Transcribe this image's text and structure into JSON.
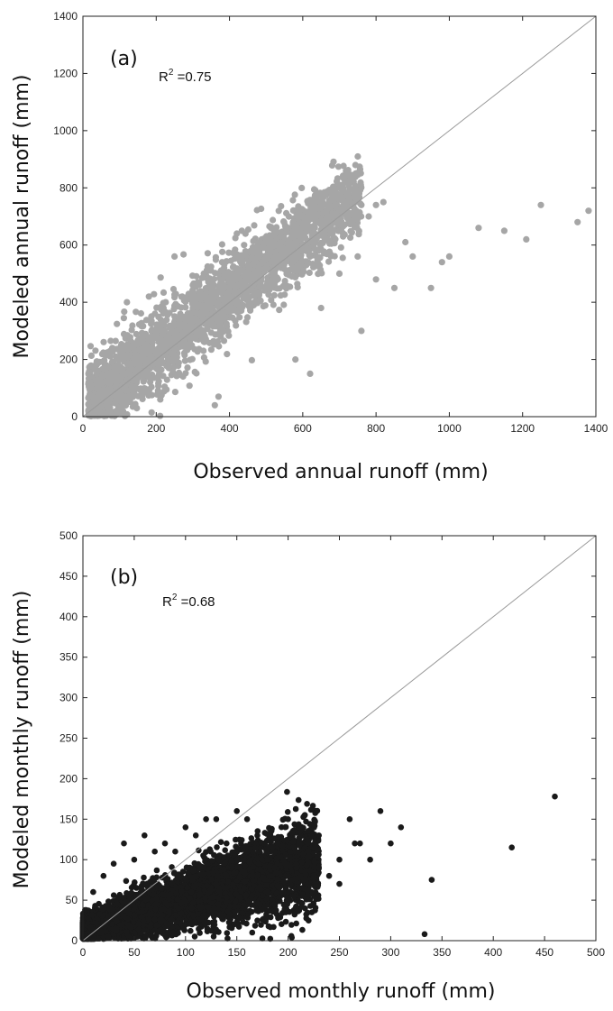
{
  "chart_data": [
    {
      "type": "scatter",
      "panel_label": "(a)",
      "annotation": {
        "prefix": "R",
        "superscript": "2",
        "suffix": " =0.75"
      },
      "xlabel": "Observed annual runoff (mm)",
      "ylabel": "Modeled annual runoff (mm)",
      "xlim": [
        0,
        1400
      ],
      "ylim": [
        0,
        1400
      ],
      "xticks": [
        0,
        200,
        400,
        600,
        800,
        1000,
        1200,
        1400
      ],
      "yticks": [
        0,
        200,
        400,
        600,
        800,
        1000,
        1200,
        1400
      ],
      "grid": false,
      "reference_line": "1:1",
      "marker_color": "#a6a6a6",
      "reference_line_color": "#9a9a9a",
      "points": [
        [
          30,
          50
        ],
        [
          40,
          130
        ],
        [
          60,
          180
        ],
        [
          80,
          240
        ],
        [
          90,
          60
        ],
        [
          120,
          400
        ],
        [
          100,
          130
        ],
        [
          150,
          260
        ],
        [
          180,
          220
        ],
        [
          200,
          300
        ],
        [
          220,
          250
        ],
        [
          250,
          320
        ],
        [
          280,
          300
        ],
        [
          300,
          380
        ],
        [
          330,
          340
        ],
        [
          350,
          420
        ],
        [
          380,
          360
        ],
        [
          400,
          440
        ],
        [
          420,
          400
        ],
        [
          450,
          480
        ],
        [
          480,
          430
        ],
        [
          500,
          520
        ],
        [
          520,
          480
        ],
        [
          550,
          560
        ],
        [
          580,
          520
        ],
        [
          600,
          600
        ],
        [
          620,
          560
        ],
        [
          640,
          680
        ],
        [
          660,
          640
        ],
        [
          680,
          700
        ],
        [
          700,
          650
        ],
        [
          720,
          720
        ],
        [
          740,
          690
        ],
        [
          760,
          740
        ],
        [
          780,
          700
        ],
        [
          800,
          740
        ],
        [
          820,
          750
        ],
        [
          760,
          300
        ],
        [
          650,
          380
        ],
        [
          580,
          200
        ],
        [
          620,
          150
        ],
        [
          700,
          500
        ],
        [
          750,
          560
        ],
        [
          800,
          480
        ],
        [
          850,
          450
        ],
        [
          880,
          610
        ],
        [
          900,
          560
        ],
        [
          950,
          450
        ],
        [
          980,
          540
        ],
        [
          1000,
          560
        ],
        [
          1080,
          660
        ],
        [
          1150,
          650
        ],
        [
          1210,
          620
        ],
        [
          1250,
          740
        ],
        [
          1350,
          680
        ],
        [
          1380,
          720
        ],
        [
          360,
          40
        ],
        [
          370,
          70
        ],
        [
          250,
          560
        ],
        [
          300,
          460
        ],
        [
          180,
          420
        ],
        [
          420,
          640
        ],
        [
          480,
          560
        ],
        [
          560,
          660
        ],
        [
          600,
          700
        ],
        [
          540,
          640
        ],
        [
          380,
          540
        ],
        [
          440,
          600
        ],
        [
          330,
          500
        ],
        [
          220,
          380
        ]
      ],
      "point_cloud": {
        "x_range": [
          15,
          760
        ],
        "spread": 70,
        "slope": 1.0,
        "intercept": 30,
        "count": 2600
      }
    },
    {
      "type": "scatter",
      "panel_label": "(b)",
      "annotation": {
        "prefix": "R",
        "superscript": "2",
        "suffix": " =0.68"
      },
      "xlabel": "Observed monthly runoff (mm)",
      "ylabel": "Modeled monthly runoff (mm)",
      "xlim": [
        0,
        500
      ],
      "ylim": [
        0,
        500
      ],
      "xticks": [
        0,
        50,
        100,
        150,
        200,
        250,
        300,
        350,
        400,
        450,
        500
      ],
      "yticks": [
        0,
        50,
        100,
        150,
        200,
        250,
        300,
        350,
        400,
        450,
        500
      ],
      "grid": false,
      "reference_line": "1:1",
      "marker_color": "#1a1a1a",
      "reference_line_color": "#9a9a9a",
      "points": [
        [
          460,
          178
        ],
        [
          418,
          115
        ],
        [
          340,
          75
        ],
        [
          333,
          8
        ],
        [
          310,
          140
        ],
        [
          300,
          120
        ],
        [
          290,
          160
        ],
        [
          280,
          100
        ],
        [
          270,
          120
        ],
        [
          260,
          150
        ],
        [
          250,
          100
        ],
        [
          240,
          80
        ],
        [
          230,
          130
        ],
        [
          220,
          110
        ],
        [
          210,
          140
        ],
        [
          200,
          150
        ],
        [
          190,
          120
        ],
        [
          180,
          100
        ],
        [
          170,
          130
        ],
        [
          160,
          150
        ],
        [
          150,
          160
        ],
        [
          140,
          120
        ],
        [
          130,
          150
        ],
        [
          120,
          150
        ],
        [
          110,
          130
        ],
        [
          100,
          140
        ],
        [
          90,
          110
        ],
        [
          80,
          120
        ],
        [
          70,
          110
        ],
        [
          60,
          130
        ],
        [
          50,
          100
        ],
        [
          40,
          120
        ],
        [
          20,
          80
        ],
        [
          30,
          95
        ],
        [
          10,
          60
        ],
        [
          165,
          10
        ],
        [
          180,
          60
        ],
        [
          200,
          80
        ],
        [
          230,
          90
        ],
        [
          250,
          70
        ],
        [
          265,
          120
        ],
        [
          120,
          100
        ],
        [
          140,
          80
        ],
        [
          160,
          110
        ],
        [
          130,
          70
        ]
      ],
      "point_cloud": {
        "x_range": [
          0,
          230
        ],
        "spread": 22,
        "slope": 0.38,
        "intercept": 12,
        "count": 7000
      }
    }
  ]
}
